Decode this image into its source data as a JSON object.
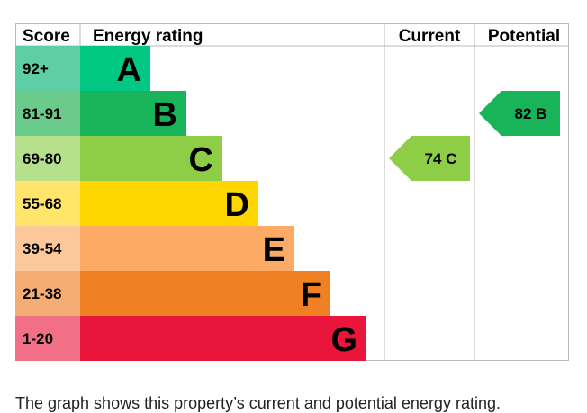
{
  "chart_data": {
    "type": "table",
    "headers": {
      "score": "Score",
      "rating": "Energy rating",
      "current": "Current",
      "potential": "Potential"
    },
    "bands": [
      {
        "score": "92+",
        "letter": "A",
        "color": "#00c781",
        "score_bg": "#5fcea4"
      },
      {
        "score": "81-91",
        "letter": "B",
        "color": "#19b459",
        "score_bg": "#6bcb8b"
      },
      {
        "score": "69-80",
        "letter": "C",
        "color": "#8dce46",
        "score_bg": "#b7e08d"
      },
      {
        "score": "55-68",
        "letter": "D",
        "color": "#ffd500",
        "score_bg": "#ffe569"
      },
      {
        "score": "39-54",
        "letter": "E",
        "color": "#fcaa65",
        "score_bg": "#fdc79c"
      },
      {
        "score": "21-38",
        "letter": "F",
        "color": "#ef8023",
        "score_bg": "#f4ad75"
      },
      {
        "score": "1-20",
        "letter": "G",
        "color": "#e9153b",
        "score_bg": "#f17088"
      }
    ],
    "current": {
      "value": 74,
      "letter": "C",
      "label": "74  C",
      "color": "#8dce46"
    },
    "potential": {
      "value": 82,
      "letter": "B",
      "label": "82  B",
      "color": "#19b459"
    }
  },
  "caption": "The graph shows this property’s current and potential energy rating."
}
